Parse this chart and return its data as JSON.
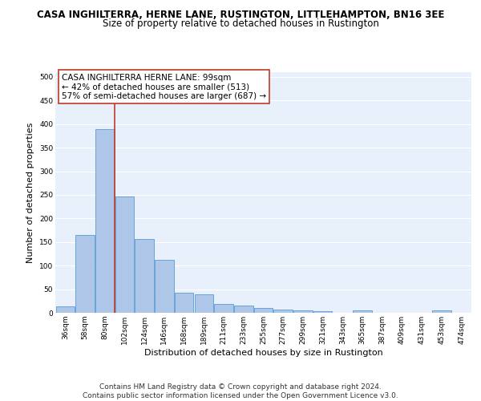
{
  "title": "CASA INGHILTERRA, HERNE LANE, RUSTINGTON, LITTLEHAMPTON, BN16 3EE",
  "subtitle": "Size of property relative to detached houses in Rustington",
  "xlabel": "Distribution of detached houses by size in Rustington",
  "ylabel": "Number of detached properties",
  "categories": [
    "36sqm",
    "58sqm",
    "80sqm",
    "102sqm",
    "124sqm",
    "146sqm",
    "168sqm",
    "189sqm",
    "211sqm",
    "233sqm",
    "255sqm",
    "277sqm",
    "299sqm",
    "321sqm",
    "343sqm",
    "365sqm",
    "387sqm",
    "409sqm",
    "431sqm",
    "453sqm",
    "474sqm"
  ],
  "values": [
    13,
    165,
    390,
    247,
    157,
    113,
    43,
    39,
    18,
    15,
    10,
    7,
    5,
    4,
    0,
    5,
    0,
    0,
    0,
    5,
    0
  ],
  "bar_color": "#aec6e8",
  "bar_edge_color": "#5b9bd5",
  "vline_x_idx": 2,
  "vline_color": "#c0392b",
  "annotation_text": "CASA INGHILTERRA HERNE LANE: 99sqm\n← 42% of detached houses are smaller (513)\n57% of semi-detached houses are larger (687) →",
  "annotation_box_color": "#ffffff",
  "annotation_box_edge": "#c0392b",
  "ylim": [
    0,
    510
  ],
  "yticks": [
    0,
    50,
    100,
    150,
    200,
    250,
    300,
    350,
    400,
    450,
    500
  ],
  "background_color": "#e8f0fb",
  "grid_color": "#ffffff",
  "footer": "Contains HM Land Registry data © Crown copyright and database right 2024.\nContains public sector information licensed under the Open Government Licence v3.0.",
  "title_fontsize": 8.5,
  "subtitle_fontsize": 8.5,
  "xlabel_fontsize": 8,
  "ylabel_fontsize": 8,
  "tick_fontsize": 6.5,
  "annotation_fontsize": 7.5,
  "footer_fontsize": 6.5
}
